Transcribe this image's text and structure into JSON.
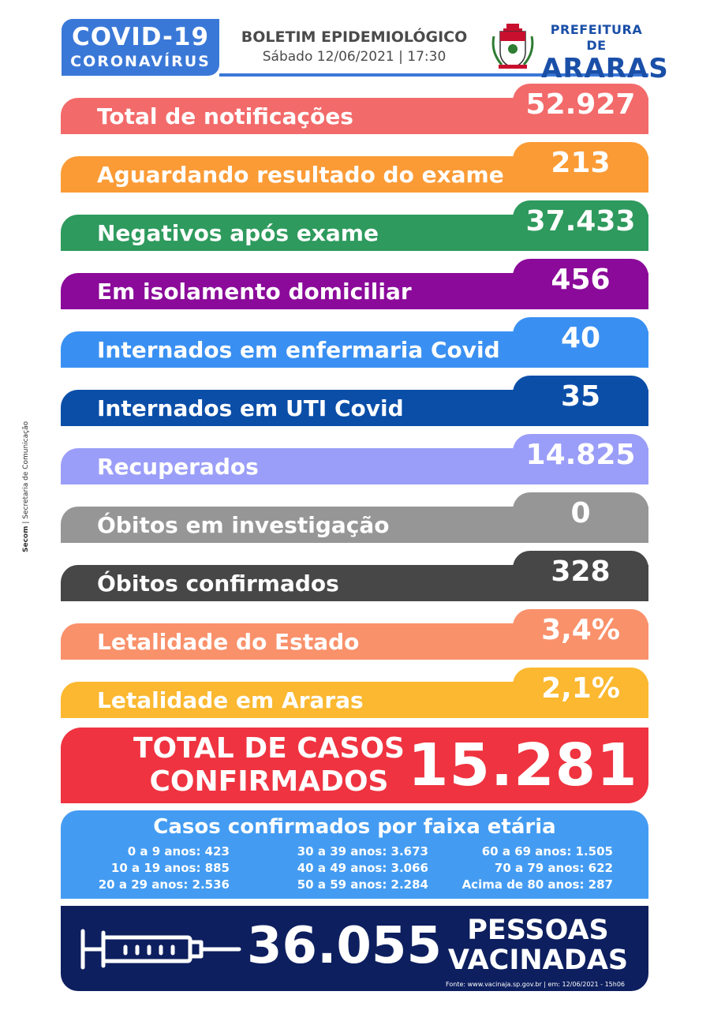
{
  "header": {
    "badge_title": "COVID-19",
    "badge_subtitle": "CORONAVÍRUS",
    "bulletin_title": "BOLETIM EPIDEMIOLÓGICO",
    "bulletin_date": "Sábado 12/06/2021 | 17:30",
    "prefeitura_line1": "PREFEITURA DE",
    "prefeitura_line2": "ARARAS"
  },
  "stats": [
    {
      "label": "Total de notificações",
      "value": "52.927",
      "color": "#f36a6a"
    },
    {
      "label": "Aguardando resultado do exame",
      "value": "213",
      "color": "#fb9b36"
    },
    {
      "label": "Negativos após exame",
      "value": "37.433",
      "color": "#2e9a5d"
    },
    {
      "label": "Em isolamento domiciliar",
      "value": "456",
      "color": "#8b0a9a"
    },
    {
      "label": "Internados em enfermaria Covid",
      "value": "40",
      "color": "#3a90f2"
    },
    {
      "label": "Internados em UTI Covid",
      "value": "35",
      "color": "#0a4ea8"
    },
    {
      "label": "Recuperados",
      "value": "14.825",
      "color": "#9b9ef8"
    },
    {
      "label": "Óbitos em investigação",
      "value": "0",
      "color": "#969696"
    },
    {
      "label": "Óbitos confirmados",
      "value": "328",
      "color": "#474747"
    },
    {
      "label": "Letalidade do Estado",
      "value": "3,4%",
      "color": "#f9916b"
    },
    {
      "label": "Letalidade em Araras",
      "value": "2,1%",
      "color": "#fbb830"
    }
  ],
  "total": {
    "label_line1": "TOTAL DE CASOS",
    "label_line2": "CONFIRMADOS",
    "value": "15.281",
    "color": "#ef3340"
  },
  "age_groups": {
    "title": "Casos confirmados por faixa etária",
    "columns": [
      [
        "0 a 9 anos:   423",
        "10 a 19 anos:   885",
        "20 a 29 anos: 2.536"
      ],
      [
        "30 a 39 anos: 3.673",
        "40 a 49 anos: 3.066",
        "50 a 59 anos: 2.284"
      ],
      [
        "60 a 69 anos: 1.505",
        "70 a 79 anos:   622",
        "Acima de 80 anos:   287"
      ]
    ]
  },
  "vaccination": {
    "value": "36.055",
    "label_line1": "PESSOAS",
    "label_line2": "VACINADAS",
    "source": "Fonte: www.vacinaja.sp.gov.br | em: 12/06/2021 - 15h06"
  },
  "side_credit": {
    "org": "Secom",
    "dept": "Secretaria de Comunicação"
  },
  "icons": [
    "syringe-icon",
    "araras-crest-icon"
  ]
}
